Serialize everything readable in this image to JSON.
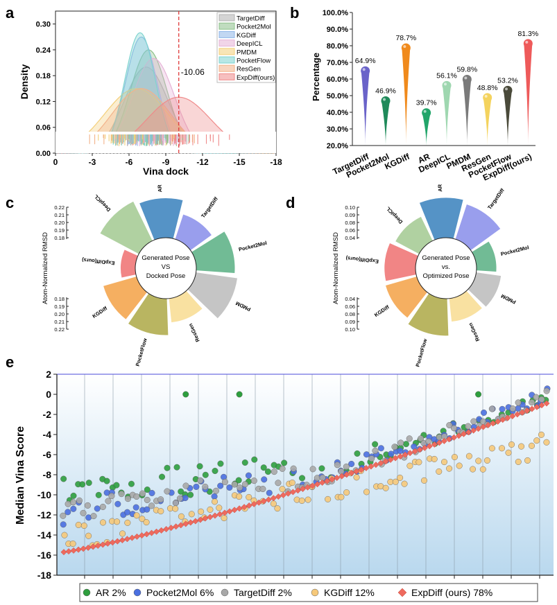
{
  "panel_labels": {
    "a": "a",
    "b": "b",
    "c": "c",
    "d": "d",
    "e": "e"
  },
  "chart_data": [
    {
      "panel": "a",
      "type": "area",
      "title": "",
      "xlabel": "Vina dock",
      "ylabel": "Density",
      "xlim": [
        0,
        -18
      ],
      "ylim": [
        0,
        0.33
      ],
      "x_ticks": [
        "0",
        "-3",
        "-6",
        "-9",
        "-12",
        "-15",
        "-18"
      ],
      "x_tick_values": [
        0,
        -3,
        -6,
        -9,
        -12,
        -15,
        -18
      ],
      "y_ticks": [
        "0.00",
        "0.06",
        "0.12",
        "0.18",
        "0.24",
        "0.30"
      ],
      "y_tick_values": [
        0,
        0.06,
        0.12,
        0.18,
        0.24,
        0.3
      ],
      "reference_line": {
        "x": -10.06,
        "label": "-10.06",
        "color": "#e03a3a"
      },
      "series": [
        {
          "name": "TargetDiff",
          "mean": -7.4,
          "sd": 1.8,
          "peak": 0.2,
          "color": "#b0b0b0"
        },
        {
          "name": "Pocket2Mol",
          "mean": -7.6,
          "sd": 1.5,
          "peak": 0.24,
          "color": "#8cc08a"
        },
        {
          "name": "KGDiff",
          "mean": -7.0,
          "sd": 1.3,
          "peak": 0.27,
          "color": "#8fb6e8"
        },
        {
          "name": "DeepICL",
          "mean": -8.0,
          "sd": 1.7,
          "peak": 0.22,
          "color": "#e5b3d6"
        },
        {
          "name": "PMDM",
          "mean": -6.6,
          "sd": 2.6,
          "peak": 0.15,
          "color": "#f3cf7a"
        },
        {
          "name": "PocketFlow",
          "mean": -6.9,
          "sd": 1.25,
          "peak": 0.28,
          "color": "#7ed3cf"
        },
        {
          "name": "ResGen",
          "mean": -7.0,
          "sd": 2.4,
          "peak": 0.15,
          "color": "#f2b38a"
        },
        {
          "name": "ExpDiff(ours)",
          "mean": -10.06,
          "sd": 2.6,
          "peak": 0.13,
          "color": "#ef8a8a"
        }
      ]
    },
    {
      "panel": "b",
      "type": "bar",
      "title": "",
      "xlabel": "",
      "ylabel": "Percentage",
      "ylim": [
        20,
        100
      ],
      "y_ticks": [
        "20.0%",
        "30.0%",
        "40.0%",
        "50.0%",
        "60.0%",
        "70.0%",
        "80.0%",
        "90.0%",
        "100.0%"
      ],
      "y_tick_values": [
        20,
        30,
        40,
        50,
        60,
        70,
        80,
        90,
        100
      ],
      "categories": [
        "TargetDiff",
        "Pocket2Mol",
        "KGDiff",
        "AR",
        "DeepICL",
        "PMDM",
        "ResGen",
        "PocketFlow",
        "ExpDiff(ours)"
      ],
      "values": [
        64.9,
        46.9,
        78.7,
        39.7,
        56.1,
        59.8,
        48.8,
        53.2,
        81.3
      ],
      "value_labels": [
        "64.9%",
        "46.9%",
        "78.7%",
        "39.7%",
        "56.1%",
        "59.8%",
        "48.8%",
        "53.2%",
        "81.3%"
      ],
      "colors": [
        "#6a63c9",
        "#1f8a5a",
        "#f08a1c",
        "#22a56a",
        "#9fd7b0",
        "#7a7a7a",
        "#f4d35e",
        "#4a4a3a",
        "#ee5a5a"
      ]
    },
    {
      "panel": "c",
      "type": "bar",
      "subtype": "circular",
      "center_label": [
        "Generated Pose",
        "VS",
        "Docked Pose"
      ],
      "axis_label": "Atom-Normalized RMSD",
      "axis_ticks_top": [
        "0.22",
        "0.21",
        "0.20",
        "0.19",
        "0.18"
      ],
      "axis_ticks_bottom": [
        "0.18",
        "0.19",
        "0.20",
        "0.21",
        "0.22"
      ],
      "categories": [
        "ExpDiff(ours)",
        "DeepICL",
        "AR",
        "TargetDiff",
        "Pocket2Mol",
        "PMDM",
        "ResGen",
        "PocketFlow",
        "KGDiff"
      ],
      "values": [
        0.184,
        0.212,
        0.208,
        0.195,
        0.207,
        0.21,
        0.193,
        0.205,
        0.203
      ],
      "colors": [
        "#ee6666",
        "#9cc68a",
        "#2a78b8",
        "#7f86e8",
        "#4daa7a",
        "#b6b6b6",
        "#f7d98a",
        "#a8a23a",
        "#f39b3a"
      ]
    },
    {
      "panel": "d",
      "type": "bar",
      "subtype": "circular",
      "center_label": [
        "Generated Pose",
        "vs.",
        "Optimized Pose"
      ],
      "axis_label": "Atom-Normalized RMSD",
      "axis_ticks_top": [
        "0.10",
        "0.09",
        "0.08",
        "0.06",
        "0.04"
      ],
      "axis_ticks_bottom": [
        "0.04",
        "0.06",
        "0.08",
        "0.09",
        "0.10"
      ],
      "categories": [
        "ExpDiff(ours)",
        "DeepICL",
        "AR",
        "TargetDiff",
        "Pocket2Mol",
        "PMDM",
        "ResGen",
        "PocketFlow",
        "KGDiff"
      ],
      "values": [
        0.072,
        0.062,
        0.093,
        0.085,
        0.046,
        0.058,
        0.054,
        0.086,
        0.075
      ],
      "colors": [
        "#ee6666",
        "#9cc68a",
        "#2a78b8",
        "#7f86e8",
        "#4daa7a",
        "#b6b6b6",
        "#f7d98a",
        "#a8a23a",
        "#f39b3a"
      ]
    },
    {
      "panel": "e",
      "type": "scatter",
      "title": "",
      "xlabel": "",
      "ylabel": "Median Vina Score",
      "ylim": [
        -18,
        2
      ],
      "y_ticks": [
        "2",
        "0",
        "-2",
        "-4",
        "-6",
        "-8",
        "-10",
        "-12",
        "-14",
        "-16",
        "-18"
      ],
      "y_tick_values": [
        2,
        0,
        -2,
        -4,
        -6,
        -8,
        -10,
        -12,
        -14,
        -16,
        -18
      ],
      "n_targets": 100,
      "series": [
        {
          "name": "AR",
          "legend": "AR 2%",
          "color": "#2e9e3e",
          "marker": "circle",
          "start": -9.8,
          "end": -4.8,
          "spread": 1.6,
          "seed": 3
        },
        {
          "name": "Pocket2Mol",
          "legend": "Pocket2Mol 6%",
          "color": "#4a6fe0",
          "marker": "circle",
          "start": -11.8,
          "end": -5.2,
          "spread": 1.5,
          "seed": 7
        },
        {
          "name": "TargetDiff",
          "legend": "TargetDiff 2%",
          "color": "#a8a8a8",
          "marker": "circle",
          "start": -11.6,
          "end": -4.9,
          "spread": 1.2,
          "seed": 11
        },
        {
          "name": "KGDiff",
          "legend": "KGDiff 12%",
          "color": "#f6c97a",
          "marker": "circle",
          "start": -14.4,
          "end": -5.1,
          "spread": 1.2,
          "seed": 19
        },
        {
          "name": "ExpDiff (ours)",
          "legend": "ExpDiff (ours) 78%",
          "color": "#ee6a5e",
          "marker": "diamond",
          "start": -15.7,
          "end": -0.9,
          "spread": 0,
          "seed": 0
        }
      ]
    }
  ]
}
